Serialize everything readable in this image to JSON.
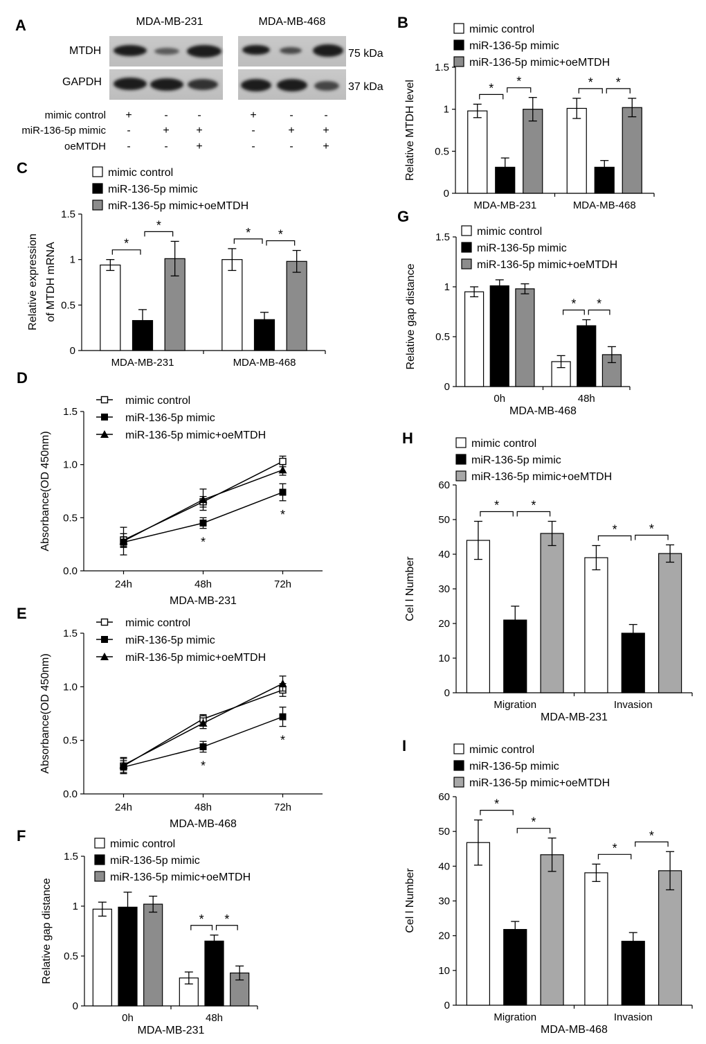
{
  "figure": {
    "colors": {
      "white": "#ffffff",
      "black": "#000000",
      "gray": "#8c8c8c",
      "light_gray": "#a8a8a8"
    },
    "legend_labels": [
      "mimic control",
      "miR-136-5p mimic",
      "miR-136-5p mimic+oeMTDH"
    ],
    "panel_A": {
      "letter": "A",
      "cell_lines": [
        "MDA-MB-231",
        "MDA-MB-468"
      ],
      "proteins": [
        "MTDH",
        "GAPDH"
      ],
      "sizes": [
        "75 kDa",
        "37 kDa"
      ],
      "conditions": [
        "mimic control",
        "miR-136-5p mimic",
        "oeMTDH"
      ],
      "signs": [
        [
          "+",
          "-",
          "-",
          "+",
          "-",
          "-"
        ],
        [
          "-",
          "+",
          "+",
          "-",
          "+",
          "+"
        ],
        [
          "-",
          "-",
          "+",
          "-",
          "-",
          "+"
        ]
      ]
    }
  },
  "chart_data": [
    {
      "id": "B",
      "letter": "B",
      "type": "bar",
      "ylabel": "Relative MTDH level",
      "xlabel": "",
      "ylim": [
        0,
        1.5
      ],
      "ticks": [
        "0",
        "0.5",
        "1",
        "1.5"
      ],
      "categories": [
        "MDA-MB-231",
        "MDA-MB-468"
      ],
      "series": [
        {
          "name": "mimic control",
          "values": [
            0.98,
            1.01
          ],
          "errors": [
            0.08,
            0.12
          ]
        },
        {
          "name": "miR-136-5p mimic",
          "values": [
            0.31,
            0.31
          ],
          "errors": [
            0.11,
            0.08
          ]
        },
        {
          "name": "miR-136-5p mimic+oeMTDH",
          "values": [
            1.0,
            1.02
          ],
          "errors": [
            0.14,
            0.11
          ]
        }
      ],
      "significance": "*"
    },
    {
      "id": "C",
      "letter": "C",
      "type": "bar",
      "ylabel": "Relative expression of MTDH mRNA",
      "ylabel_lines": [
        "Relative expression",
        "of  MTDH mRNA"
      ],
      "xlabel": "",
      "ylim": [
        0,
        1.5
      ],
      "ticks": [
        "0",
        "0.5",
        "1",
        "1.5"
      ],
      "categories": [
        "MDA-MB-231",
        "MDA-MB-468"
      ],
      "series": [
        {
          "name": "mimic control",
          "values": [
            0.94,
            1.0
          ],
          "errors": [
            0.06,
            0.12
          ]
        },
        {
          "name": "miR-136-5p mimic",
          "values": [
            0.33,
            0.34
          ],
          "errors": [
            0.12,
            0.08
          ]
        },
        {
          "name": "miR-136-5p mimic+oeMTDH",
          "values": [
            1.01,
            0.98
          ],
          "errors": [
            0.19,
            0.12
          ]
        }
      ],
      "significance": "*"
    },
    {
      "id": "D",
      "letter": "D",
      "type": "line",
      "ylabel": "Absorbance(OD 450nm)",
      "xlabel": "MDA-MB-231",
      "ylim": [
        0,
        1.5
      ],
      "ticks": [
        "0.0",
        "0.5",
        "1.0",
        "1.5"
      ],
      "categories": [
        "24h",
        "48h",
        "72h"
      ],
      "series": [
        {
          "name": "mimic control",
          "values": [
            0.29,
            0.65,
            1.03
          ],
          "errors": [
            0.06,
            0.05,
            0.05
          ]
        },
        {
          "name": "miR-136-5p mimic",
          "values": [
            0.27,
            0.45,
            0.74
          ],
          "errors": [
            0.05,
            0.05,
            0.08
          ]
        },
        {
          "name": "miR-136-5p mimic+oeMTDH",
          "values": [
            0.28,
            0.67,
            0.95
          ],
          "errors": [
            0.13,
            0.1,
            0.05
          ]
        }
      ],
      "significance": "*"
    },
    {
      "id": "E",
      "letter": "E",
      "type": "line",
      "ylabel": "Absorbance(OD 450nm)",
      "xlabel": "MDA-MB-468",
      "ylim": [
        0,
        1.5
      ],
      "ticks": [
        "0.0",
        "0.5",
        "1.0",
        "1.5"
      ],
      "categories": [
        "24h",
        "48h",
        "72h"
      ],
      "series": [
        {
          "name": "mimic control",
          "values": [
            0.26,
            0.7,
            0.97
          ],
          "errors": [
            0.07,
            0.04,
            0.06
          ]
        },
        {
          "name": "miR-136-5p mimic",
          "values": [
            0.25,
            0.44,
            0.72
          ],
          "errors": [
            0.06,
            0.05,
            0.09
          ]
        },
        {
          "name": "miR-136-5p mimic+oeMTDH",
          "values": [
            0.27,
            0.66,
            1.03
          ],
          "errors": [
            0.07,
            0.05,
            0.07
          ]
        }
      ],
      "significance": "*"
    },
    {
      "id": "F",
      "letter": "F",
      "type": "bar",
      "ylabel": "Relative gap distance",
      "xlabel": "MDA-MB-231",
      "ylim": [
        0,
        1.5
      ],
      "ticks": [
        "0",
        "0.5",
        "1",
        "1.5"
      ],
      "categories": [
        "0h",
        "48h"
      ],
      "series": [
        {
          "name": "mimic control",
          "values": [
            0.97,
            0.28
          ],
          "errors": [
            0.07,
            0.06
          ]
        },
        {
          "name": "miR-136-5p mimic",
          "values": [
            0.99,
            0.65
          ],
          "errors": [
            0.15,
            0.06
          ]
        },
        {
          "name": "miR-136-5p mimic+oeMTDH",
          "values": [
            1.02,
            0.33
          ],
          "errors": [
            0.08,
            0.07
          ]
        }
      ],
      "significance": "*"
    },
    {
      "id": "G",
      "letter": "G",
      "type": "bar",
      "ylabel": "Relative gap distance",
      "xlabel": "MDA-MB-468",
      "ylim": [
        0,
        1.5
      ],
      "ticks": [
        "0",
        "0.5",
        "1",
        "1.5"
      ],
      "categories": [
        "0h",
        "48h"
      ],
      "series": [
        {
          "name": "mimic control",
          "values": [
            0.95,
            0.25
          ],
          "errors": [
            0.05,
            0.06
          ]
        },
        {
          "name": "miR-136-5p mimic",
          "values": [
            1.01,
            0.61
          ],
          "errors": [
            0.06,
            0.06
          ]
        },
        {
          "name": "miR-136-5p mimic+oeMTDH",
          "values": [
            0.98,
            0.32
          ],
          "errors": [
            0.05,
            0.08
          ]
        }
      ],
      "significance": "*"
    },
    {
      "id": "H",
      "letter": "H",
      "type": "bar",
      "ylabel": "Cel l  Number",
      "xlabel": "MDA-MB-231",
      "ylim": [
        0,
        60
      ],
      "ticks": [
        "0",
        "10",
        "20",
        "30",
        "40",
        "50",
        "60"
      ],
      "categories": [
        "Migration",
        "Invasion"
      ],
      "series": [
        {
          "name": "mimic control",
          "values": [
            44,
            39
          ],
          "errors": [
            5.5,
            3.5
          ]
        },
        {
          "name": "miR-136-5p mimic",
          "values": [
            21,
            17.2
          ],
          "errors": [
            4,
            2.5
          ]
        },
        {
          "name": "miR-136-5p mimic+oeMTDH",
          "values": [
            46,
            40.2
          ],
          "errors": [
            3.5,
            2.5
          ]
        }
      ],
      "significance": "*"
    },
    {
      "id": "I",
      "letter": "I",
      "type": "bar",
      "ylabel": "Cel l  Number",
      "xlabel": "MDA-MB-468",
      "ylim": [
        0,
        60
      ],
      "ticks": [
        "0",
        "10",
        "20",
        "30",
        "40",
        "50",
        "60"
      ],
      "categories": [
        "Migration",
        "Invasion"
      ],
      "series": [
        {
          "name": "mimic control",
          "values": [
            46.8,
            38.1
          ],
          "errors": [
            6.5,
            2.5
          ]
        },
        {
          "name": "miR-136-5p mimic",
          "values": [
            21.8,
            18.4
          ],
          "errors": [
            2.3,
            2.5
          ]
        },
        {
          "name": "miR-136-5p mimic+oeMTDH",
          "values": [
            43.3,
            38.7
          ],
          "errors": [
            4.8,
            5.5
          ]
        }
      ],
      "significance": "*"
    }
  ]
}
